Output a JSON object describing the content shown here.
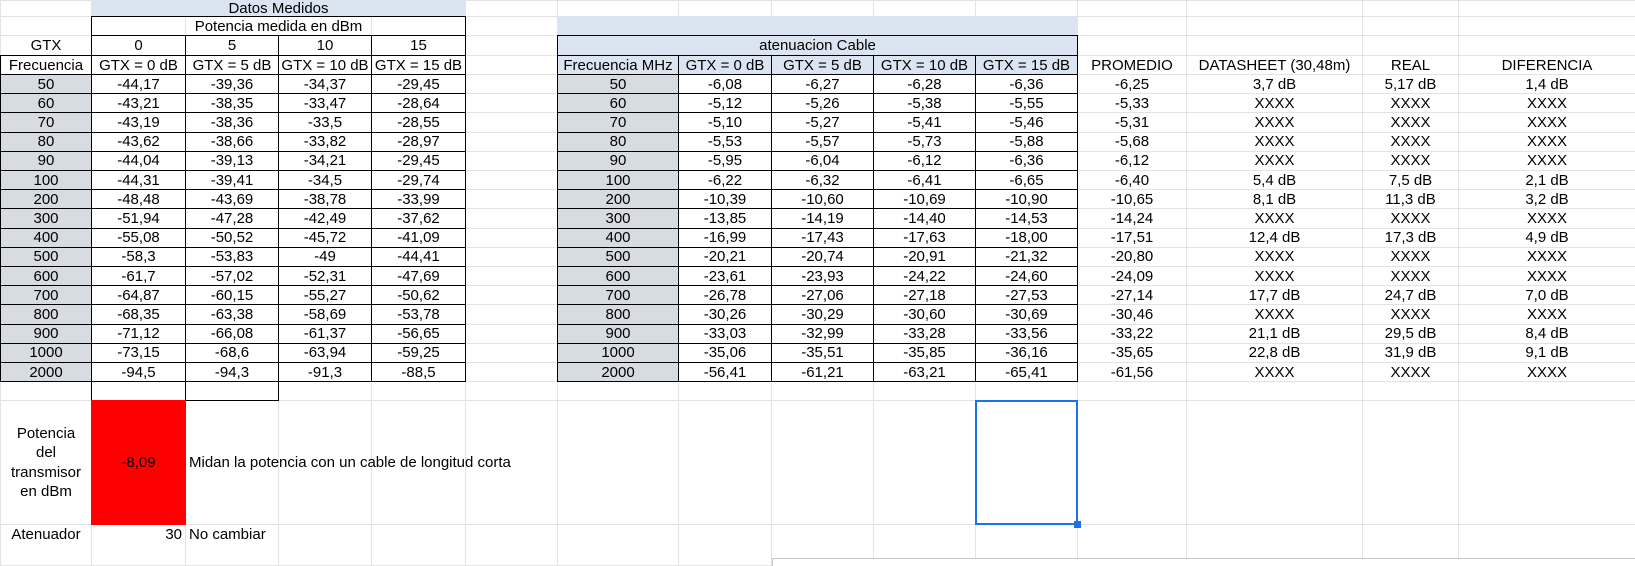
{
  "measured": {
    "title": "Datos Medidos",
    "subtitle": "Potencia medida en dBm",
    "gtx_label": "GTX",
    "gtx_values": [
      "0",
      "5",
      "10",
      "15"
    ],
    "freq_label": "Frecuencia",
    "columns": [
      "GTX = 0 dB",
      "GTX = 5 dB",
      "GTX = 10 dB",
      "GTX = 15 dB"
    ],
    "rows": [
      [
        "50",
        "-44,17",
        "-39,36",
        "-34,37",
        "-29,45"
      ],
      [
        "60",
        "-43,21",
        "-38,35",
        "-33,47",
        "-28,64"
      ],
      [
        "70",
        "-43,19",
        "-38,36",
        "-33,5",
        "-28,55"
      ],
      [
        "80",
        "-43,62",
        "-38,66",
        "-33,82",
        "-28,97"
      ],
      [
        "90",
        "-44,04",
        "-39,13",
        "-34,21",
        "-29,45"
      ],
      [
        "100",
        "-44,31",
        "-39,41",
        "-34,5",
        "-29,74"
      ],
      [
        "200",
        "-48,48",
        "-43,69",
        "-38,78",
        "-33,99"
      ],
      [
        "300",
        "-51,94",
        "-47,28",
        "-42,49",
        "-37,62"
      ],
      [
        "400",
        "-55,08",
        "-50,52",
        "-45,72",
        "-41,09"
      ],
      [
        "500",
        "-58,3",
        "-53,83",
        "-49",
        "-44,41"
      ],
      [
        "600",
        "-61,7",
        "-57,02",
        "-52,31",
        "-47,69"
      ],
      [
        "700",
        "-64,87",
        "-60,15",
        "-55,27",
        "-50,62"
      ],
      [
        "800",
        "-68,35",
        "-63,38",
        "-58,69",
        "-53,78"
      ],
      [
        "900",
        "-71,12",
        "-66,08",
        "-61,37",
        "-56,65"
      ],
      [
        "1000",
        "-73,15",
        "-68,6",
        "-63,94",
        "-59,25"
      ],
      [
        "2000",
        "-94,5",
        "-94,3",
        "-91,3",
        "-88,5"
      ]
    ]
  },
  "attenuation": {
    "title": "atenuacion Cable",
    "columns": [
      "Frecuencia MHz",
      "GTX = 0 dB",
      "GTX = 5 dB",
      "GTX = 10 dB",
      "GTX = 15 dB",
      "PROMEDIO",
      "DATASHEET (30,48m)",
      "REAL",
      "DIFERENCIA"
    ],
    "rows": [
      [
        "50",
        "-6,08",
        "-6,27",
        "-6,28",
        "-6,36",
        "-6,25",
        "3,7 dB",
        "5,17 dB",
        "1,4 dB"
      ],
      [
        "60",
        "-5,12",
        "-5,26",
        "-5,38",
        "-5,55",
        "-5,33",
        "XXXX",
        "XXXX",
        "XXXX"
      ],
      [
        "70",
        "-5,10",
        "-5,27",
        "-5,41",
        "-5,46",
        "-5,31",
        "XXXX",
        "XXXX",
        "XXXX"
      ],
      [
        "80",
        "-5,53",
        "-5,57",
        "-5,73",
        "-5,88",
        "-5,68",
        "XXXX",
        "XXXX",
        "XXXX"
      ],
      [
        "90",
        "-5,95",
        "-6,04",
        "-6,12",
        "-6,36",
        "-6,12",
        "XXXX",
        "XXXX",
        "XXXX"
      ],
      [
        "100",
        "-6,22",
        "-6,32",
        "-6,41",
        "-6,65",
        "-6,40",
        "5,4 dB",
        "7,5 dB",
        "2,1 dB"
      ],
      [
        "200",
        "-10,39",
        "-10,60",
        "-10,69",
        "-10,90",
        "-10,65",
        "8,1 dB",
        "11,3 dB",
        "3,2 dB"
      ],
      [
        "300",
        "-13,85",
        "-14,19",
        "-14,40",
        "-14,53",
        "-14,24",
        "XXXX",
        "XXXX",
        "XXXX"
      ],
      [
        "400",
        "-16,99",
        "-17,43",
        "-17,63",
        "-18,00",
        "-17,51",
        "12,4 dB",
        "17,3 dB",
        "4,9 dB"
      ],
      [
        "500",
        "-20,21",
        "-20,74",
        "-20,91",
        "-21,32",
        "-20,80",
        "XXXX",
        "XXXX",
        "XXXX"
      ],
      [
        "600",
        "-23,61",
        "-23,93",
        "-24,22",
        "-24,60",
        "-24,09",
        "XXXX",
        "XXXX",
        "XXXX"
      ],
      [
        "700",
        "-26,78",
        "-27,06",
        "-27,18",
        "-27,53",
        "-27,14",
        "17,7 dB",
        "24,7 dB",
        "7,0 dB"
      ],
      [
        "800",
        "-30,26",
        "-30,29",
        "-30,60",
        "-30,69",
        "-30,46",
        "XXXX",
        "XXXX",
        "XXXX"
      ],
      [
        "900",
        "-33,03",
        "-32,99",
        "-33,28",
        "-33,56",
        "-33,22",
        "21,1 dB",
        "29,5 dB",
        "8,4 dB"
      ],
      [
        "1000",
        "-35,06",
        "-35,51",
        "-35,85",
        "-36,16",
        "-35,65",
        "22,8 dB",
        "31,9 dB",
        "9,1 dB"
      ],
      [
        "2000",
        "-56,41",
        "-61,21",
        "-63,21",
        "-65,41",
        "-61,56",
        "XXXX",
        "XXXX",
        "XXXX"
      ]
    ]
  },
  "transmitter": {
    "label": "Potencia del transmisor en dBm",
    "value": "-8,09",
    "note": "Midan la potencia con un cable de longitud corta"
  },
  "attenuator": {
    "label": "Atenuador",
    "value": "30",
    "note": "No cambiar"
  },
  "colors": {
    "header_fill": "#dbe5f1",
    "frequency_fill": "#d7dbe2",
    "transmitter_fill": "#ff0000",
    "selection": "#1a73e8"
  }
}
